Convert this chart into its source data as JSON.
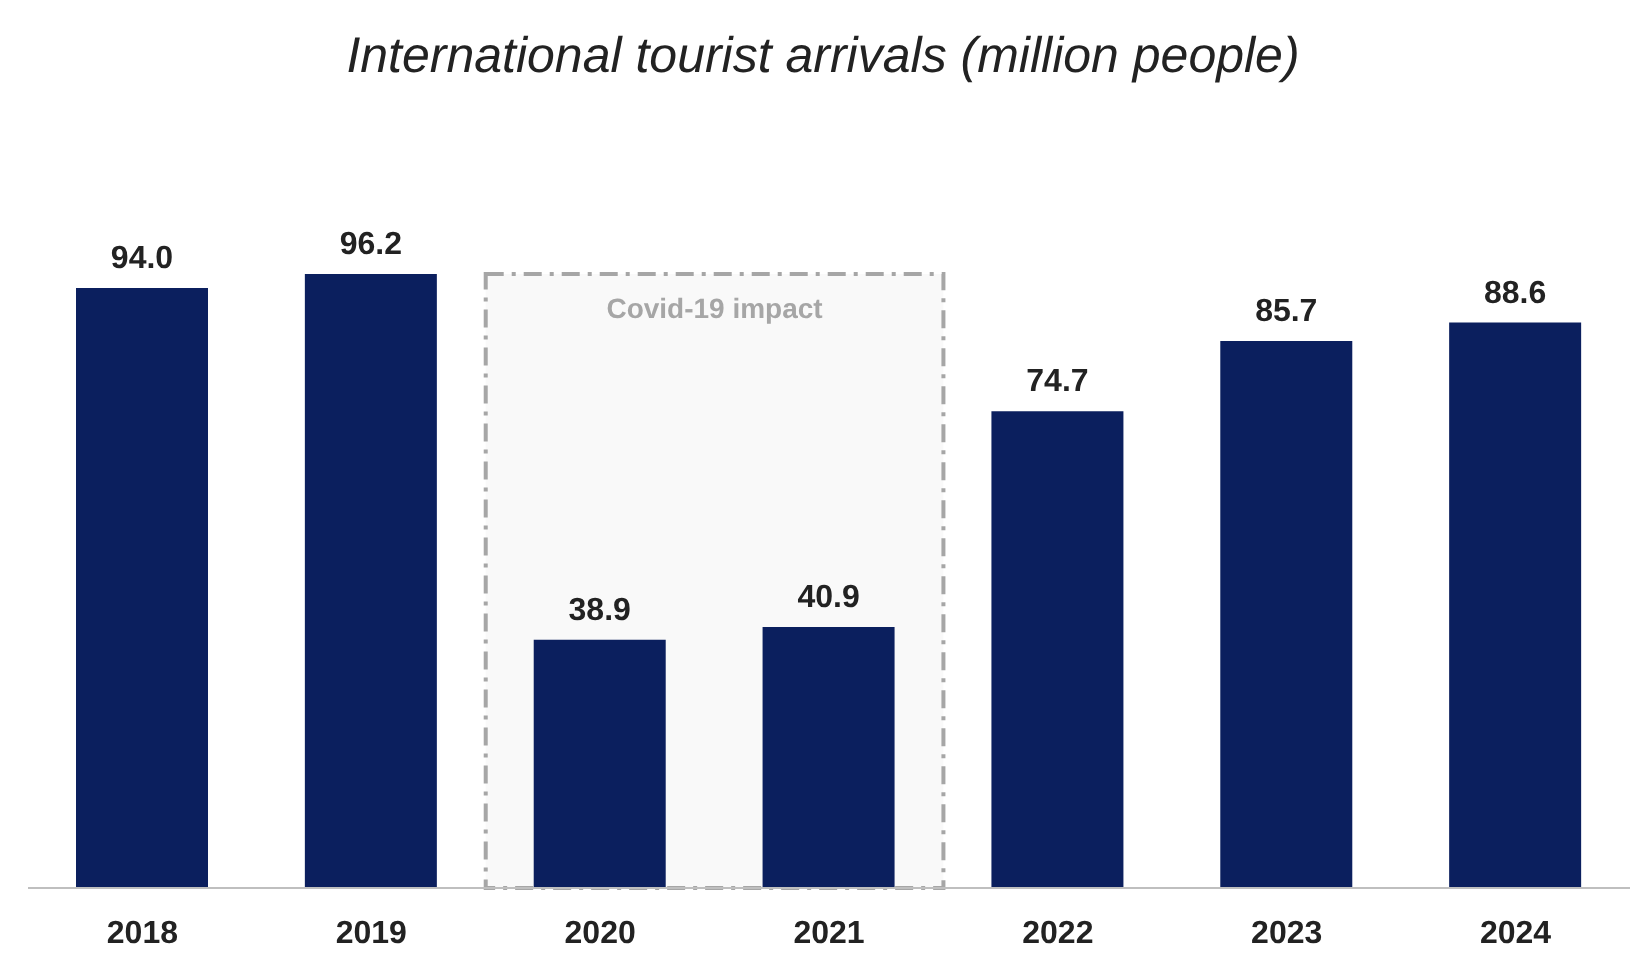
{
  "chart_data": {
    "type": "bar",
    "title": "International tourist arrivals (million people)",
    "categories": [
      "2018",
      "2019",
      "2020",
      "2021",
      "2022",
      "2023",
      "2024"
    ],
    "values": [
      94.0,
      96.2,
      38.9,
      40.9,
      74.7,
      85.7,
      88.6
    ],
    "color": "#0b1f5e",
    "value_labels": [
      "94.0",
      "96.2",
      "38.9",
      "40.9",
      "74.7",
      "85.7",
      "88.6"
    ],
    "grid": false,
    "legend": false,
    "bands": [
      {
        "axis": "x",
        "from": "2020",
        "to": "2021",
        "label": "Covid-19 impact",
        "color": "#a6a6a6"
      }
    ]
  }
}
